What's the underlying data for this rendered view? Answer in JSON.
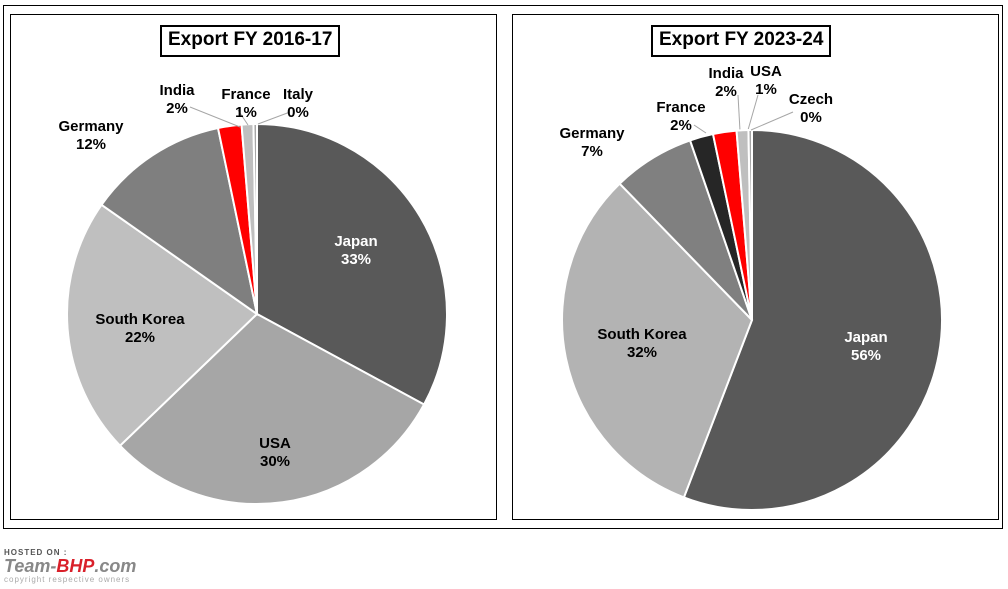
{
  "chart_data": [
    {
      "type": "pie",
      "title": "Export FY 2016-17",
      "slices": [
        {
          "label": "Japan",
          "value": 33,
          "display": "33%",
          "color": "#595959"
        },
        {
          "label": "USA",
          "value": 30,
          "display": "30%",
          "color": "#a6a6a6"
        },
        {
          "label": "South Korea",
          "value": 22,
          "display": "22%",
          "color": "#bfbfbf"
        },
        {
          "label": "Germany",
          "value": 12,
          "display": "12%",
          "color": "#7f7f7f"
        },
        {
          "label": "India",
          "value": 2,
          "display": "2%",
          "color": "#ff0000"
        },
        {
          "label": "France",
          "value": 1,
          "display": "1%",
          "color": "#bfbfbf"
        },
        {
          "label": "Italy",
          "value": 0,
          "display": "0%",
          "color": "#a6a6a6"
        }
      ]
    },
    {
      "type": "pie",
      "title": "Export FY 2023-24",
      "slices": [
        {
          "label": "Japan",
          "value": 56,
          "display": "56%",
          "color": "#595959"
        },
        {
          "label": "South Korea",
          "value": 32,
          "display": "32%",
          "color": "#b3b3b3"
        },
        {
          "label": "Germany",
          "value": 7,
          "display": "7%",
          "color": "#808080"
        },
        {
          "label": "France",
          "value": 2,
          "display": "2%",
          "color": "#262626"
        },
        {
          "label": "India",
          "value": 2,
          "display": "2%",
          "color": "#ff0000"
        },
        {
          "label": "USA",
          "value": 1,
          "display": "1%",
          "color": "#bfbfbf"
        },
        {
          "label": "Czech",
          "value": 0,
          "display": "0%",
          "color": "#a6a6a6"
        }
      ]
    }
  ],
  "watermark": {
    "hosted": "HOSTED ON :",
    "brand_a": "Team-",
    "brand_b": "BHP",
    "brand_c": ".com",
    "copyright": "copyright respective owners"
  }
}
